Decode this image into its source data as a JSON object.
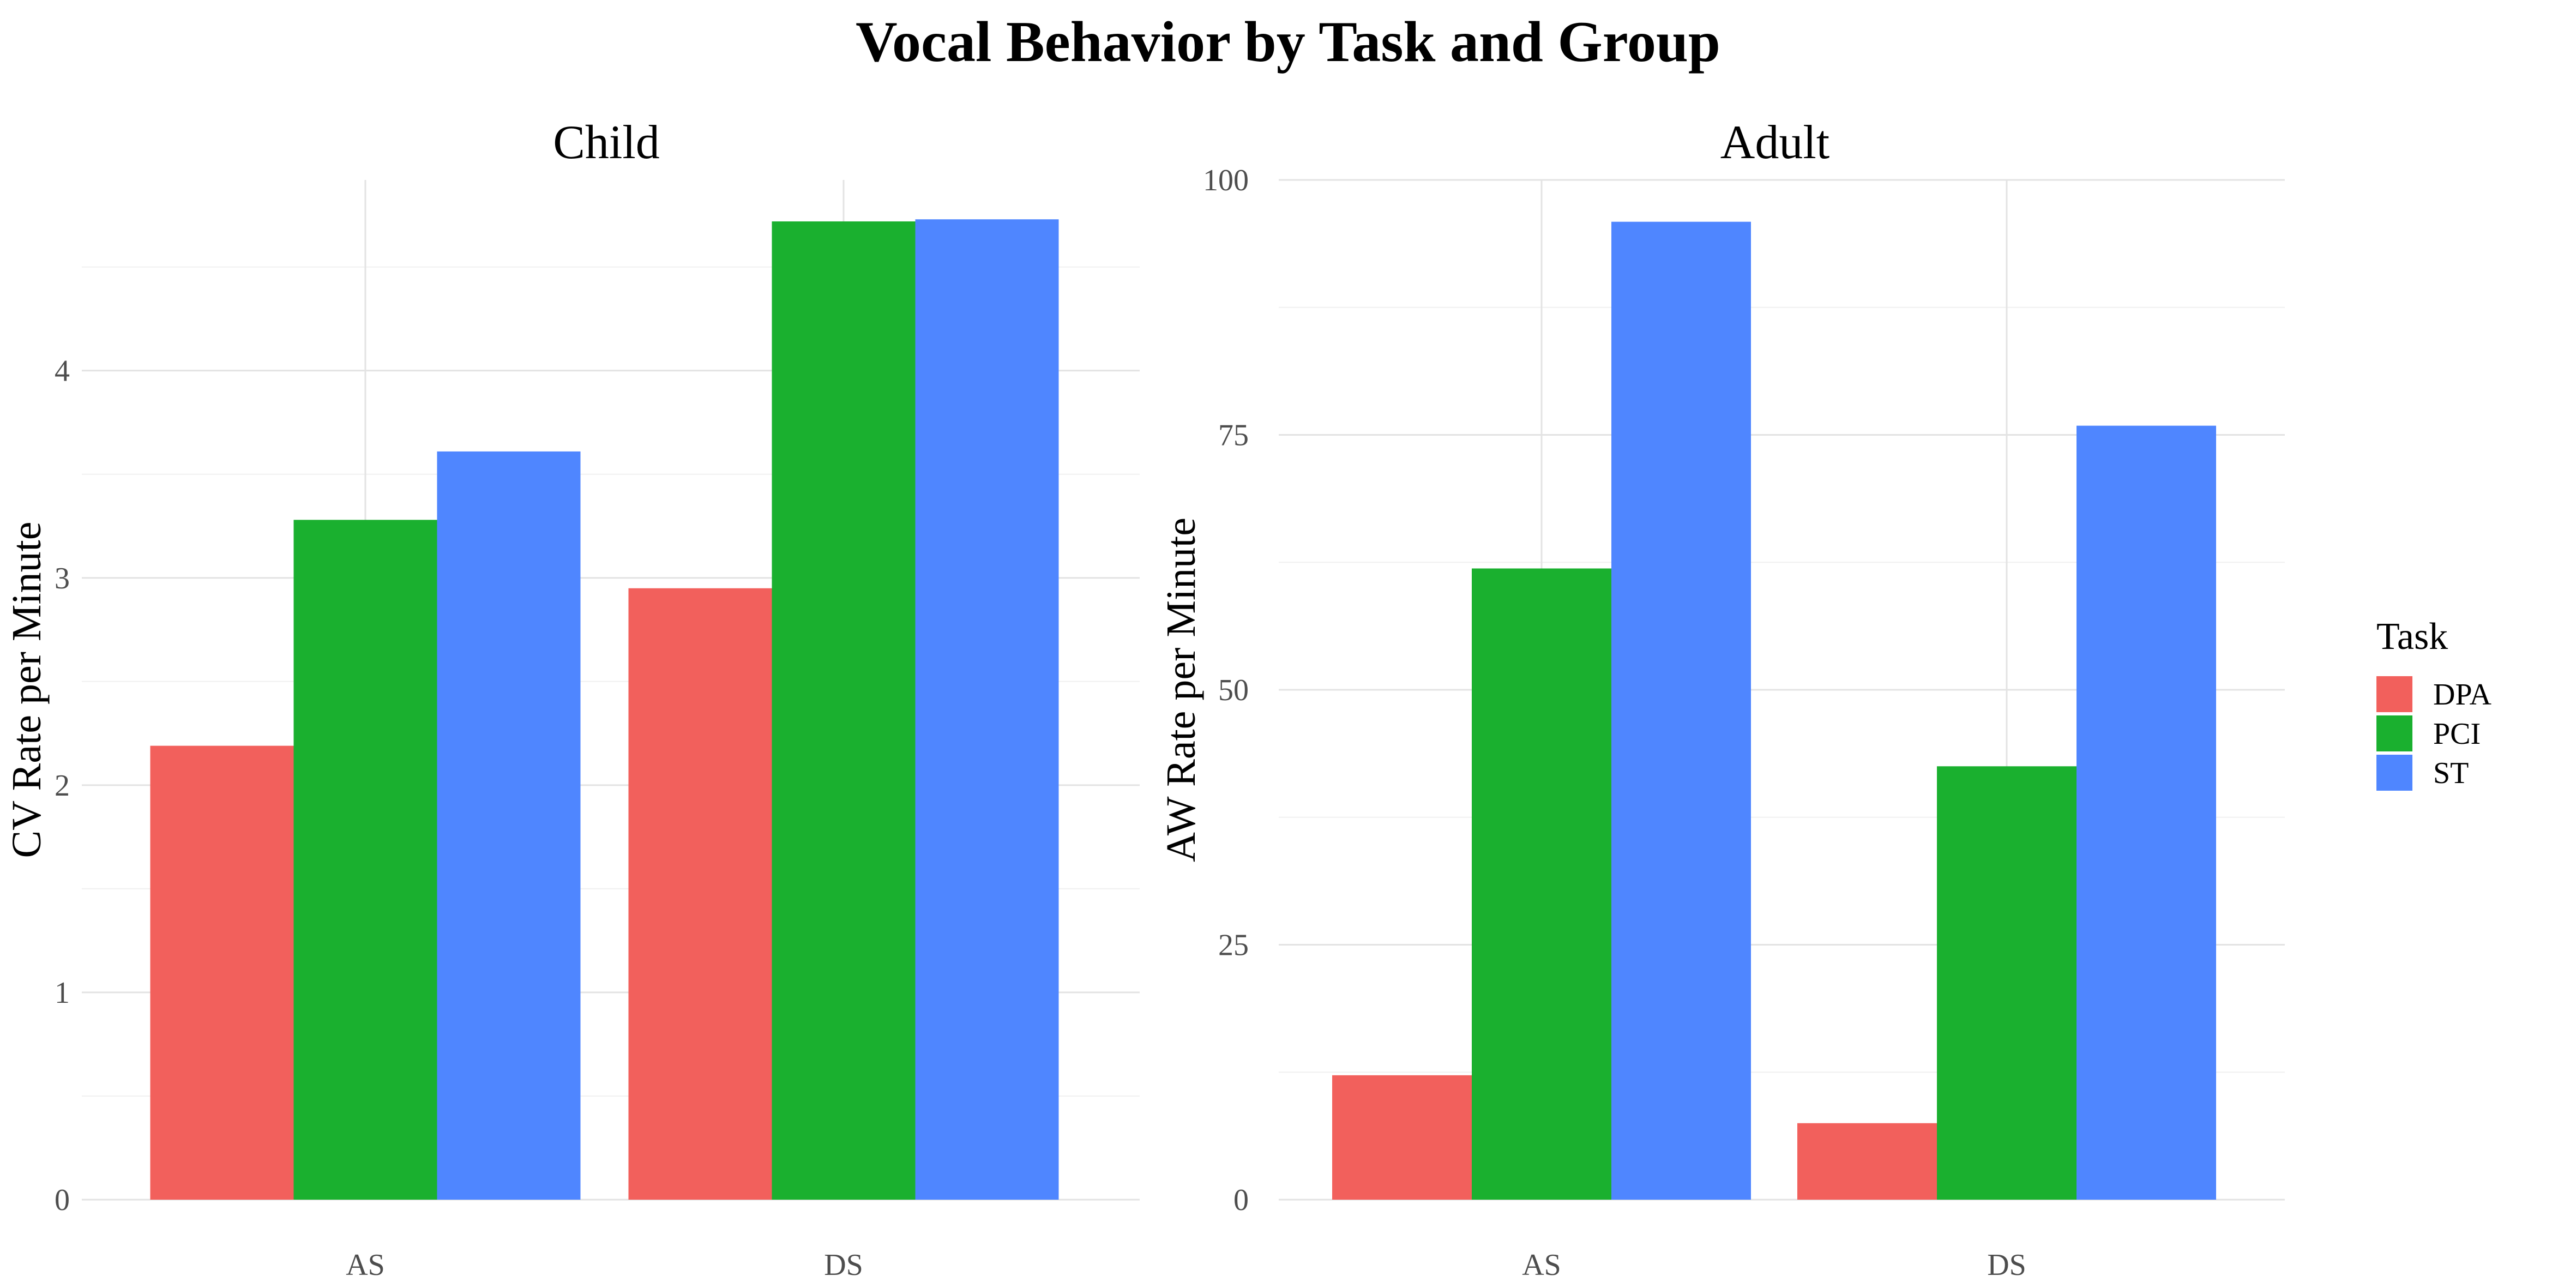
{
  "chart_data": {
    "title": "Vocal Behavior by Task and Group",
    "type": "bar",
    "grid": true,
    "legend": {
      "title": "Task",
      "position": "right",
      "items": [
        {
          "label": "DPA",
          "color": "#F2605C"
        },
        {
          "label": "PCI",
          "color": "#1AB02F"
        },
        {
          "label": "ST",
          "color": "#4F86FF"
        }
      ]
    },
    "panels": [
      {
        "title": "Child",
        "ylabel": "CV Rate per Minute",
        "xlabel": "",
        "categories": [
          "AS",
          "DS"
        ],
        "ylim": [
          0,
          4.92
        ],
        "yticks": [
          "0",
          "1",
          "2",
          "3",
          "4"
        ],
        "yticks_values": [
          0,
          1,
          2,
          3,
          4
        ],
        "series": [
          {
            "name": "DPA",
            "values": [
              2.19,
              2.95
            ]
          },
          {
            "name": "PCI",
            "values": [
              3.28,
              4.72
            ]
          },
          {
            "name": "ST",
            "values": [
              3.61,
              4.73
            ]
          }
        ]
      },
      {
        "title": "Adult",
        "ylabel": "AW Rate per Minute",
        "xlabel": "",
        "categories": [
          "AS",
          "DS"
        ],
        "ylim": [
          0,
          100
        ],
        "yticks": [
          "0",
          "25",
          "50",
          "75",
          "100"
        ],
        "yticks_values": [
          0,
          25,
          50,
          75,
          100
        ],
        "series": [
          {
            "name": "DPA",
            "values": [
              12.2,
              7.5
            ]
          },
          {
            "name": "PCI",
            "values": [
              61.9,
              42.5
            ]
          },
          {
            "name": "ST",
            "values": [
              95.9,
              75.9
            ]
          }
        ]
      }
    ]
  }
}
